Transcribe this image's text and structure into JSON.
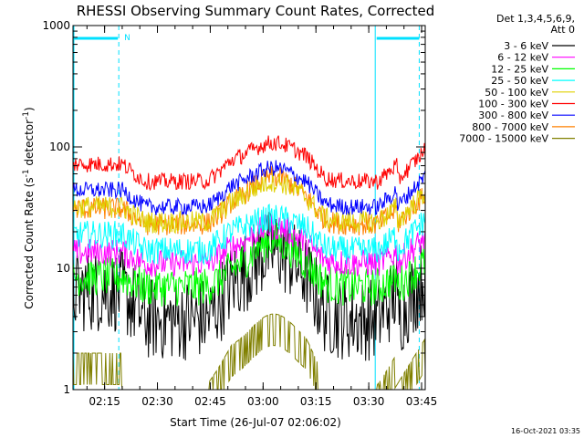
{
  "chart_data": {
    "type": "line",
    "title": "RHESSI Observing Summary Count Rates, Corrected",
    "xlabel": "Start Time (26-Jul-07 02:06:02)",
    "ylabel_main": "Corrected Count Rate (s",
    "ylabel_sup1": "-1",
    "ylabel_mid": " detector",
    "ylabel_sup2": "-1",
    "ylabel_end": ")",
    "y_scale": "log",
    "ylim": [
      1,
      1000
    ],
    "xlim_minutes": [
      0,
      100
    ],
    "x_ticks": [
      {
        "label": "02:15",
        "minutes": 8.97
      },
      {
        "label": "02:30",
        "minutes": 23.97
      },
      {
        "label": "02:45",
        "minutes": 38.97
      },
      {
        "label": "03:00",
        "minutes": 53.97
      },
      {
        "label": "03:15",
        "minutes": 68.97
      },
      {
        "label": "03:30",
        "minutes": 83.97
      },
      {
        "label": "03:45",
        "minutes": 98.97
      }
    ],
    "y_ticks": [
      {
        "label": "1",
        "value": 1
      },
      {
        "label": "10",
        "value": 10
      },
      {
        "label": "100",
        "value": 100
      },
      {
        "label": "1000",
        "value": 1000
      }
    ],
    "legend_header_1": "Det 1,3,4,5,6,9,",
    "legend_header_2": "Att 0",
    "legend_position": "right",
    "attenuator_label": "N",
    "attenuator_intervals_minutes": [
      [
        0,
        13.0
      ],
      [
        85.8,
        100
      ]
    ],
    "series": [
      {
        "name": "3 - 6 keV",
        "color": "#000000",
        "base": 6.5,
        "night": 3.8,
        "peak": 14,
        "noise": 0.15,
        "floor": 1
      },
      {
        "name": "6 - 12 keV",
        "color": "#ff00ff",
        "base": 13.5,
        "night": 11,
        "peak": 22,
        "noise": 0.05,
        "floor": 1
      },
      {
        "name": "12 - 25 keV",
        "color": "#00ff00",
        "base": 8.5,
        "night": 7,
        "peak": 17,
        "noise": 0.07,
        "floor": 1
      },
      {
        "name": "25 - 50 keV",
        "color": "#00ffff",
        "base": 19,
        "night": 14,
        "peak": 26,
        "noise": 0.05,
        "floor": 1
      },
      {
        "name": "50 - 100 keV",
        "color": "#e0d000",
        "base": 32,
        "night": 24,
        "peak": 52,
        "noise": 0.04,
        "floor": 1
      },
      {
        "name": "100 - 300 keV",
        "color": "#ff0000",
        "base": 72,
        "night": 52,
        "peak": 108,
        "noise": 0.03,
        "floor": 1
      },
      {
        "name": "300 - 800 keV",
        "color": "#0000ff",
        "base": 44,
        "night": 32,
        "peak": 67,
        "noise": 0.03,
        "floor": 1
      },
      {
        "name": "800 - 7000 keV",
        "color": "#ff8000",
        "base": 31,
        "night": 23,
        "peak": 57,
        "noise": 0.04,
        "floor": 1
      },
      {
        "name": "7000 - 15000 keV",
        "color": "#808000",
        "base": 2.0,
        "night": 1.1,
        "peak": 4.2,
        "noise": 0.25,
        "floor": 1
      }
    ],
    "timestamp": "16-Oct-2021 03:35"
  }
}
